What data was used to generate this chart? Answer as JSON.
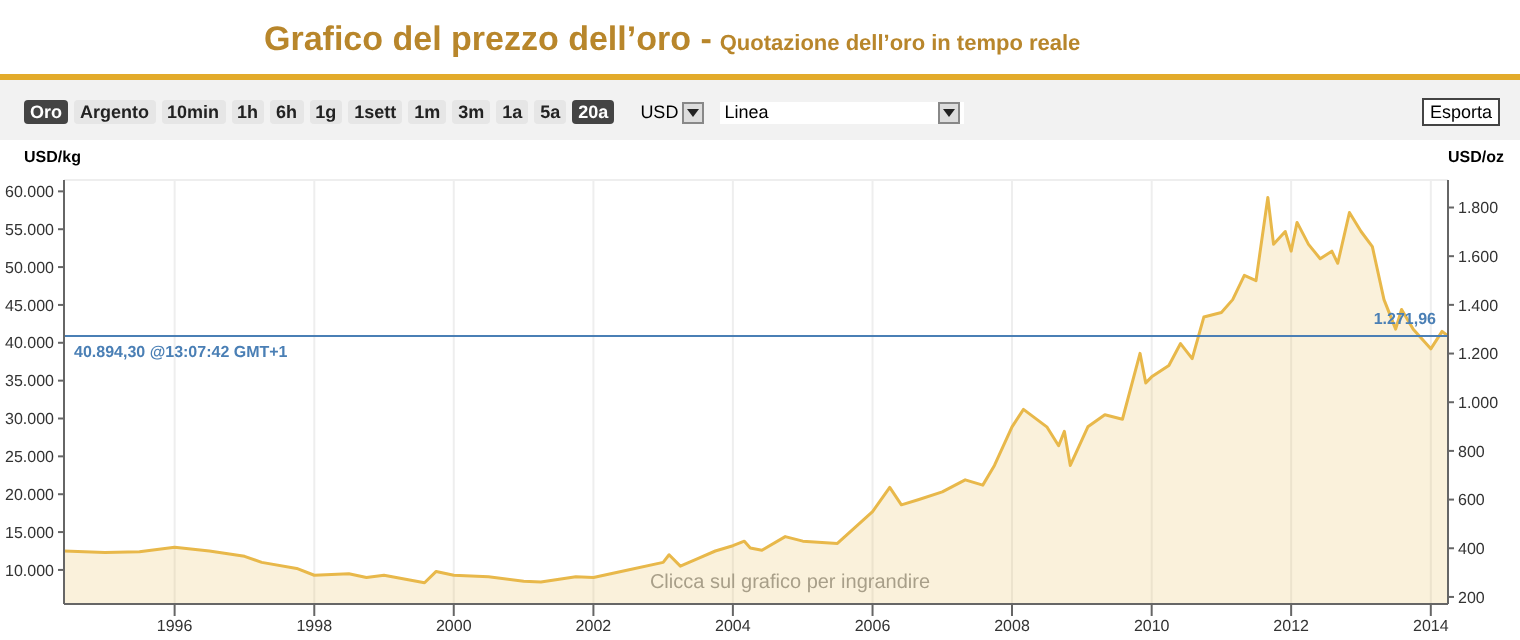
{
  "chart_data": {
    "type": "area",
    "title": "Grafico del prezzo dell’oro -",
    "subtitle": "Quotazione dell’oro in tempo reale",
    "ylabel": "USD/kg",
    "y2label": "USD/oz",
    "annotations": [
      "Oro",
      "Argento",
      "10min",
      "1h",
      "6h",
      "1g",
      "1sett",
      "1m",
      "3m",
      "1a",
      "5a",
      "20a",
      "USD",
      "Linea",
      "Esporta",
      "Clicca sul grafico per ingrandire",
      {
        "text": "1.271,96",
        "x": "2014-04",
        "y": 40894.3
      }
    ],
    "x": [
      "1994-06",
      "1995-01",
      "1995-07",
      "1996-01",
      "1996-07",
      "1997-01",
      "1997-04",
      "1997-10",
      "1998-01",
      "1998-07",
      "1998-10",
      "1999-01",
      "1999-08",
      "1999-10",
      "2000-01",
      "2000-07",
      "2001-01",
      "2001-04",
      "2001-10",
      "2002-01",
      "2002-07",
      "2003-01",
      "2003-02",
      "2003-04",
      "2003-07",
      "2003-10",
      "2004-01",
      "2004-03",
      "2004-04",
      "2004-06",
      "2004-10",
      "2005-01",
      "2005-07",
      "2006-01",
      "2006-04",
      "2006-06",
      "2006-09",
      "2007-01",
      "2007-05",
      "2007-08",
      "2007-10",
      "2008-01",
      "2008-03",
      "2008-07",
      "2008-09",
      "2008-10",
      "2008-11",
      "2009-02",
      "2009-05",
      "2009-08",
      "2009-11",
      "2009-12",
      "2010-01",
      "2010-04",
      "2010-06",
      "2010-08",
      "2010-10",
      "2011-01",
      "2011-03",
      "2011-05",
      "2011-07",
      "2011-09",
      "2011-10",
      "2011-12",
      "2012-01",
      "2012-02",
      "2012-04",
      "2012-06",
      "2012-08",
      "2012-09",
      "2012-11",
      "2013-01",
      "2013-03",
      "2013-05",
      "2013-07",
      "2013-08",
      "2013-10",
      "2014-01",
      "2014-03",
      "2014-04"
    ],
    "series": [
      {
        "color": "#e8b84a",
        "values": [
          12500,
          12300,
          12400,
          13000,
          12500,
          11800,
          11000,
          10200,
          9300,
          9500,
          9000,
          9300,
          8300,
          9800,
          9300,
          9100,
          8500,
          8400,
          9100,
          9000,
          10000,
          11000,
          12000,
          10500,
          11500,
          12500,
          13200,
          13800,
          12900,
          12600,
          14400,
          13800,
          13500,
          17700,
          20900,
          18600,
          19300,
          20300,
          21900,
          21200,
          23800,
          28900,
          31200,
          28900,
          26400,
          28300,
          23800,
          28900,
          30500,
          29900,
          38600,
          34700,
          35500,
          37000,
          39900,
          37900,
          43400,
          44000,
          45700,
          48900,
          48200,
          59200,
          53000,
          54700,
          52100,
          55900,
          53000,
          51100,
          52100,
          50500,
          57200,
          54700,
          52700,
          45700,
          41800,
          44400,
          41800,
          39200,
          41500,
          40900
        ]
      }
    ],
    "xlim": [
      "1994-06",
      "2014-04"
    ],
    "xticks": [
      "1996",
      "1998",
      "2000",
      "2002",
      "2004",
      "2006",
      "2008",
      "2010",
      "2012",
      "2014"
    ],
    "ylim": [
      5500,
      61500
    ],
    "yticks": [
      {
        "value": 10000,
        "label": "10.000"
      },
      {
        "value": 15000,
        "label": "15.000"
      },
      {
        "value": 20000,
        "label": "20.000"
      },
      {
        "value": 25000,
        "label": "25.000"
      },
      {
        "value": 30000,
        "label": "30.000"
      },
      {
        "value": 35000,
        "label": "35.000"
      },
      {
        "value": 40000,
        "label": "40.000"
      },
      {
        "value": 45000,
        "label": "45.000"
      },
      {
        "value": 50000,
        "label": "50.000"
      },
      {
        "value": 55000,
        "label": "55.000"
      },
      {
        "value": 60000,
        "label": "60.000"
      }
    ],
    "y2lim": [
      171,
      1913
    ],
    "y2ticks": [
      {
        "value": 200,
        "label": "200"
      },
      {
        "value": 400,
        "label": "400"
      },
      {
        "value": 600,
        "label": "600"
      },
      {
        "value": 800,
        "label": "800"
      },
      {
        "value": 1000,
        "label": "1.000"
      },
      {
        "value": 1200,
        "label": "1.200"
      },
      {
        "value": 1400,
        "label": "1.400"
      },
      {
        "value": 1600,
        "label": "1.600"
      },
      {
        "value": 1800,
        "label": "1.800"
      }
    ],
    "ref_lines": [
      {
        "axis": "y",
        "value": 40894.3,
        "label": "40.894,30 @13:07:42 GMT+1",
        "color": "#4a7fb5"
      }
    ],
    "grid": true,
    "legend": false
  }
}
